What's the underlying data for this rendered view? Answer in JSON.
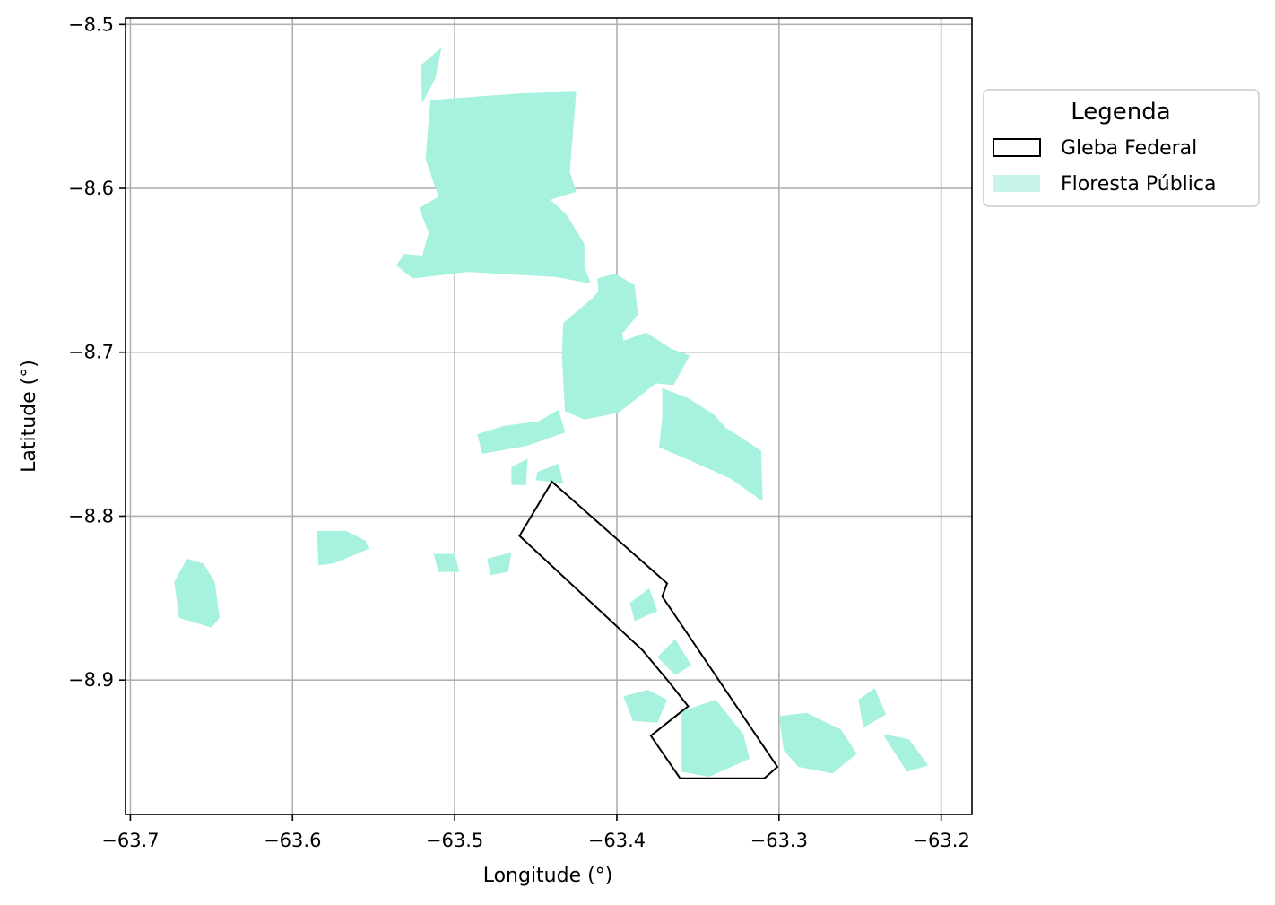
{
  "chart_data": {
    "type": "map",
    "xlabel": "Longitude (°)",
    "ylabel": "Latitude (°)",
    "xlim": [
      -63.703,
      -63.181
    ],
    "ylim": [
      -8.982,
      -8.496
    ],
    "grid": true,
    "x_ticks": [
      {
        "value": -63.7,
        "label": "−63.7"
      },
      {
        "value": -63.6,
        "label": "−63.6"
      },
      {
        "value": -63.5,
        "label": "−63.5"
      },
      {
        "value": -63.4,
        "label": "−63.4"
      },
      {
        "value": -63.3,
        "label": "−63.3"
      },
      {
        "value": -63.2,
        "label": "−63.2"
      }
    ],
    "y_ticks": [
      {
        "value": -8.5,
        "label": "−8.5"
      },
      {
        "value": -8.6,
        "label": "−8.6"
      },
      {
        "value": -8.7,
        "label": "−8.7"
      },
      {
        "value": -8.8,
        "label": "−8.8"
      },
      {
        "value": -8.9,
        "label": "−8.9"
      }
    ],
    "legend": {
      "title": "Legenda",
      "placement": "outside-upper-right",
      "entries": [
        {
          "label": "Gleba Federal",
          "style": "outline",
          "color": "#000000"
        },
        {
          "label": "Floresta Pública",
          "style": "fill",
          "color": "#a6f2de"
        }
      ]
    },
    "gleba_federal": [
      [
        -63.44,
        -8.779
      ],
      [
        -63.369,
        -8.841
      ],
      [
        -63.372,
        -8.849
      ],
      [
        -63.301,
        -8.953
      ],
      [
        -63.309,
        -8.96
      ],
      [
        -63.361,
        -8.96
      ],
      [
        -63.379,
        -8.934
      ],
      [
        -63.356,
        -8.916
      ],
      [
        -63.368,
        -8.901
      ],
      [
        -63.384,
        -8.882
      ],
      [
        -63.46,
        -8.812
      ],
      [
        -63.44,
        -8.779
      ]
    ],
    "floresta_publica": [
      {
        "name": "north-ribbon",
        "points": [
          [
            -63.515,
            -8.546
          ],
          [
            -63.458,
            -8.542
          ],
          [
            -63.425,
            -8.541
          ],
          [
            -63.429,
            -8.59
          ],
          [
            -63.425,
            -8.602
          ],
          [
            -63.441,
            -8.607
          ],
          [
            -63.431,
            -8.616
          ],
          [
            -63.42,
            -8.634
          ],
          [
            -63.42,
            -8.648
          ],
          [
            -63.416,
            -8.658
          ],
          [
            -63.438,
            -8.654
          ],
          [
            -63.492,
            -8.651
          ],
          [
            -63.526,
            -8.655
          ],
          [
            -63.536,
            -8.647
          ],
          [
            -63.531,
            -8.64
          ],
          [
            -63.52,
            -8.641
          ],
          [
            -63.516,
            -8.627
          ],
          [
            -63.522,
            -8.612
          ],
          [
            -63.51,
            -8.605
          ],
          [
            -63.518,
            -8.582
          ]
        ]
      },
      {
        "name": "north-sliver",
        "points": [
          [
            -63.521,
            -8.525
          ],
          [
            -63.508,
            -8.514
          ],
          [
            -63.512,
            -8.533
          ],
          [
            -63.52,
            -8.548
          ]
        ]
      },
      {
        "name": "central-block",
        "points": [
          [
            -63.433,
            -8.682
          ],
          [
            -63.415,
            -8.667
          ],
          [
            -63.401,
            -8.652
          ],
          [
            -63.396,
            -8.693
          ],
          [
            -63.382,
            -8.688
          ],
          [
            -63.366,
            -8.698
          ],
          [
            -63.355,
            -8.702
          ],
          [
            -63.365,
            -8.72
          ],
          [
            -63.376,
            -8.719
          ],
          [
            -63.399,
            -8.737
          ],
          [
            -63.42,
            -8.741
          ],
          [
            -63.432,
            -8.736
          ],
          [
            -63.434,
            -8.701
          ]
        ]
      },
      {
        "name": "upper-center",
        "points": [
          [
            -63.412,
            -8.655
          ],
          [
            -63.401,
            -8.652
          ],
          [
            -63.389,
            -8.659
          ],
          [
            -63.387,
            -8.677
          ],
          [
            -63.396,
            -8.688
          ],
          [
            -63.41,
            -8.68
          ]
        ]
      },
      {
        "name": "east-triangle",
        "points": [
          [
            -63.372,
            -8.722
          ],
          [
            -63.356,
            -8.728
          ],
          [
            -63.34,
            -8.738
          ],
          [
            -63.333,
            -8.746
          ],
          [
            -63.311,
            -8.76
          ],
          [
            -63.31,
            -8.791
          ],
          [
            -63.33,
            -8.777
          ],
          [
            -63.355,
            -8.766
          ],
          [
            -63.374,
            -8.758
          ],
          [
            -63.372,
            -8.74
          ]
        ]
      },
      {
        "name": "left-strip",
        "points": [
          [
            -63.486,
            -8.75
          ],
          [
            -63.47,
            -8.745
          ],
          [
            -63.448,
            -8.742
          ],
          [
            -63.436,
            -8.735
          ],
          [
            -63.432,
            -8.749
          ],
          [
            -63.455,
            -8.757
          ],
          [
            -63.483,
            -8.762
          ]
        ]
      },
      {
        "name": "south-center-1",
        "points": [
          [
            -63.449,
            -8.773
          ],
          [
            -63.436,
            -8.768
          ],
          [
            -63.433,
            -8.78
          ],
          [
            -63.45,
            -8.778
          ]
        ]
      },
      {
        "name": "south-center-2",
        "points": [
          [
            -63.465,
            -8.77
          ],
          [
            -63.455,
            -8.765
          ],
          [
            -63.456,
            -8.781
          ],
          [
            -63.465,
            -8.781
          ]
        ]
      },
      {
        "name": "west-block-1",
        "points": [
          [
            -63.665,
            -8.826
          ],
          [
            -63.655,
            -8.829
          ],
          [
            -63.648,
            -8.84
          ],
          [
            -63.645,
            -8.862
          ],
          [
            -63.65,
            -8.868
          ],
          [
            -63.67,
            -8.862
          ],
          [
            -63.673,
            -8.84
          ]
        ]
      },
      {
        "name": "west-block-2",
        "points": [
          [
            -63.585,
            -8.809
          ],
          [
            -63.567,
            -8.809
          ],
          [
            -63.555,
            -8.815
          ],
          [
            -63.553,
            -8.82
          ],
          [
            -63.575,
            -8.829
          ],
          [
            -63.584,
            -8.83
          ]
        ]
      },
      {
        "name": "west-block-3",
        "points": [
          [
            -63.513,
            -8.823
          ],
          [
            -63.5,
            -8.823
          ],
          [
            -63.497,
            -8.834
          ],
          [
            -63.51,
            -8.834
          ]
        ]
      },
      {
        "name": "west-block-4",
        "points": [
          [
            -63.48,
            -8.826
          ],
          [
            -63.465,
            -8.822
          ],
          [
            -63.467,
            -8.834
          ],
          [
            -63.478,
            -8.836
          ]
        ]
      },
      {
        "name": "gleba-patch-1",
        "points": [
          [
            -63.392,
            -8.853
          ],
          [
            -63.38,
            -8.844
          ],
          [
            -63.375,
            -8.858
          ],
          [
            -63.389,
            -8.864
          ]
        ]
      },
      {
        "name": "gleba-patch-2",
        "points": [
          [
            -63.375,
            -8.886
          ],
          [
            -63.364,
            -8.875
          ],
          [
            -63.354,
            -8.891
          ],
          [
            -63.364,
            -8.897
          ]
        ]
      },
      {
        "name": "gleba-patch-3",
        "points": [
          [
            -63.36,
            -8.919
          ],
          [
            -63.339,
            -8.912
          ],
          [
            -63.322,
            -8.933
          ],
          [
            -63.318,
            -8.948
          ],
          [
            -63.343,
            -8.959
          ],
          [
            -63.36,
            -8.956
          ]
        ]
      },
      {
        "name": "gleba-patch-4",
        "points": [
          [
            -63.396,
            -8.91
          ],
          [
            -63.381,
            -8.906
          ],
          [
            -63.369,
            -8.912
          ],
          [
            -63.375,
            -8.926
          ],
          [
            -63.39,
            -8.925
          ]
        ]
      },
      {
        "name": "east-cluster-1",
        "points": [
          [
            -63.3,
            -8.922
          ],
          [
            -63.283,
            -8.92
          ],
          [
            -63.262,
            -8.93
          ],
          [
            -63.252,
            -8.945
          ],
          [
            -63.267,
            -8.957
          ],
          [
            -63.288,
            -8.953
          ],
          [
            -63.297,
            -8.943
          ]
        ]
      },
      {
        "name": "east-cluster-2",
        "points": [
          [
            -63.251,
            -8.912
          ],
          [
            -63.241,
            -8.905
          ],
          [
            -63.234,
            -8.921
          ],
          [
            -63.248,
            -8.929
          ]
        ]
      },
      {
        "name": "east-cluster-3",
        "points": [
          [
            -63.236,
            -8.933
          ],
          [
            -63.22,
            -8.936
          ],
          [
            -63.208,
            -8.952
          ],
          [
            -63.221,
            -8.956
          ]
        ]
      }
    ]
  }
}
